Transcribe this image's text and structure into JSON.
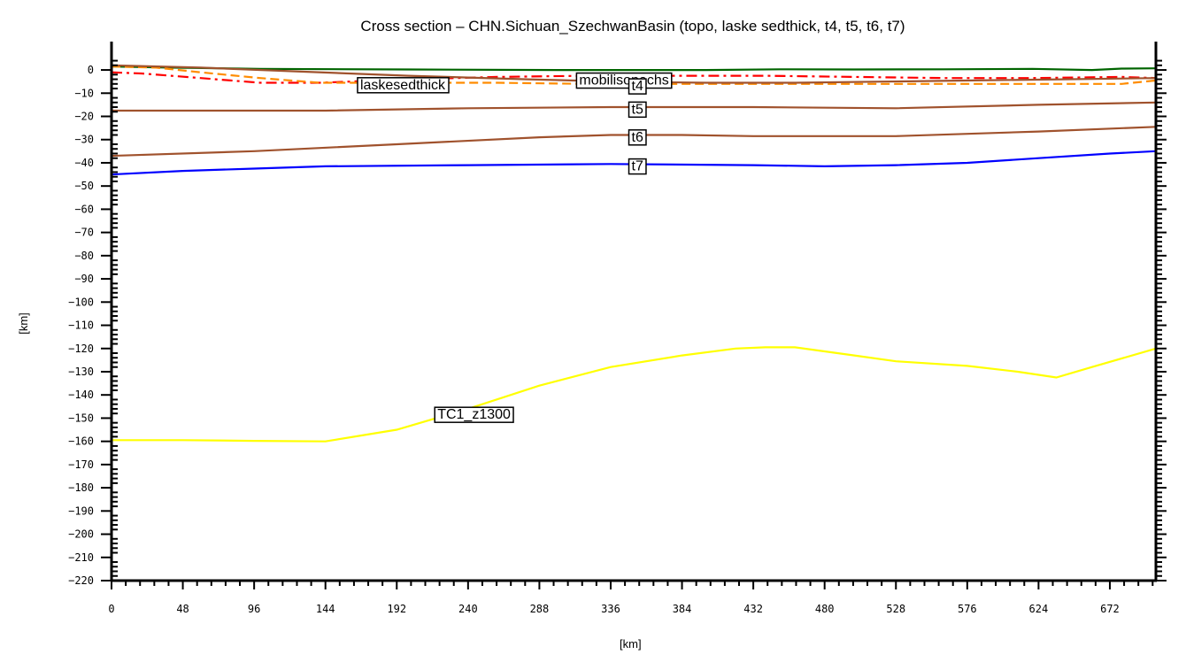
{
  "chart_data": {
    "type": "line",
    "title": "Cross section – CHN.Sichuan_SzechwanBasin (topo, laske sedthick, t4, t5, t6, t7)",
    "xlabel": "[km]",
    "ylabel": "[km]",
    "xlim": [
      0,
      703
    ],
    "ylim": [
      -220,
      4.6
    ],
    "grid": false,
    "legend": "inline labels",
    "x_ticks": [
      0,
      48,
      96,
      144,
      192,
      240,
      288,
      336,
      384,
      432,
      480,
      528,
      576,
      624,
      672
    ],
    "y_ticks": [
      0,
      -10,
      -20,
      -30,
      -40,
      -50,
      -60,
      -70,
      -80,
      -90,
      -100,
      -110,
      -120,
      -130,
      -140,
      -150,
      -160,
      -170,
      -180,
      -190,
      -200,
      -210,
      -220
    ],
    "series": [
      {
        "name": "topo",
        "color": "#006400",
        "style": "solid",
        "x": [
          0,
          40,
          100,
          200,
          300,
          400,
          450,
          500,
          560,
          620,
          660,
          680,
          703
        ],
        "y": [
          1.5,
          1.0,
          0.5,
          0.2,
          0.0,
          0.0,
          0.3,
          0.2,
          0.3,
          0.5,
          0.0,
          0.6,
          0.7
        ]
      },
      {
        "name": "mobilisopachs",
        "color": "#ff0000",
        "style": "dashdot",
        "x": [
          0,
          20,
          40,
          60,
          80,
          100,
          140,
          200,
          260,
          320,
          380,
          440,
          500,
          560,
          620,
          680,
          703
        ],
        "y": [
          -1.0,
          -1.5,
          -2.5,
          -3.5,
          -4.5,
          -5.5,
          -5.5,
          -4.0,
          -3.0,
          -2.5,
          -2.5,
          -2.5,
          -3.0,
          -3.5,
          -3.5,
          -3.0,
          -3.5
        ]
      },
      {
        "name": "laskesedthick",
        "color": "#ff8c00",
        "style": "dashed",
        "x": [
          0,
          30,
          60,
          100,
          140,
          200,
          260,
          320,
          380,
          440,
          500,
          560,
          620,
          680,
          703
        ],
        "y": [
          1.5,
          1.0,
          -1.0,
          -3.5,
          -5.5,
          -5.5,
          -5.5,
          -6.0,
          -6.0,
          -6.0,
          -6.0,
          -6.0,
          -6.0,
          -6.0,
          -4.5
        ]
      },
      {
        "name": "t4",
        "color": "#a0522d",
        "style": "solid",
        "x": [
          0,
          60,
          120,
          200,
          280,
          340,
          400,
          460,
          520,
          580,
          640,
          703
        ],
        "y": [
          2.0,
          1.0,
          -0.5,
          -2.5,
          -4.0,
          -5.0,
          -5.5,
          -5.5,
          -5.0,
          -4.5,
          -4.0,
          -3.5
        ]
      },
      {
        "name": "t5",
        "color": "#a0522d",
        "style": "solid",
        "x": [
          0,
          96,
          144,
          240,
          336,
          432,
          528,
          624,
          703
        ],
        "y": [
          -17.5,
          -17.5,
          -17.5,
          -16.5,
          -16.0,
          -16.0,
          -16.5,
          -15.0,
          -14.0
        ]
      },
      {
        "name": "t6",
        "color": "#a0522d",
        "style": "solid",
        "x": [
          0,
          96,
          192,
          288,
          336,
          384,
          432,
          528,
          624,
          703
        ],
        "y": [
          -37.0,
          -35.0,
          -32.0,
          -29.0,
          -28.0,
          -28.0,
          -28.5,
          -28.5,
          -26.5,
          -24.5
        ]
      },
      {
        "name": "t7",
        "color": "#0000ff",
        "style": "solid",
        "x": [
          0,
          48,
          96,
          144,
          240,
          336,
          432,
          480,
          528,
          576,
          624,
          672,
          703
        ],
        "y": [
          -45.0,
          -43.5,
          -42.5,
          -41.5,
          -41.0,
          -40.5,
          -41.0,
          -41.5,
          -41.0,
          -40.0,
          -38.0,
          -36.0,
          -35.0
        ]
      },
      {
        "name": "TC1_z1300",
        "color": "#ffff00",
        "style": "solid",
        "x": [
          0,
          48,
          96,
          144,
          192,
          240,
          288,
          336,
          384,
          420,
          440,
          460,
          500,
          528,
          576,
          610,
          636,
          660,
          703
        ],
        "y": [
          -159.5,
          -159.5,
          -159.8,
          -160.0,
          -155.0,
          -146.0,
          -136.0,
          -128.0,
          -123.0,
          -120.0,
          -119.5,
          -119.5,
          -123.0,
          -125.5,
          -127.5,
          -130.0,
          -132.5,
          -128.0,
          -120.0
        ]
      }
    ],
    "annotations": [
      {
        "text": "laskesedthick",
        "x": 196,
        "y": -6
      },
      {
        "text": "mobilisopachs",
        "x": 345,
        "y": -4
      },
      {
        "text": "t4",
        "x": 354,
        "y": -6.5
      },
      {
        "text": "t5",
        "x": 354,
        "y": -16.5
      },
      {
        "text": "t6",
        "x": 354,
        "y": -28.5
      },
      {
        "text": "t7",
        "x": 354,
        "y": -41
      },
      {
        "text": "TC1_z1300",
        "x": 244,
        "y": -148
      }
    ]
  }
}
